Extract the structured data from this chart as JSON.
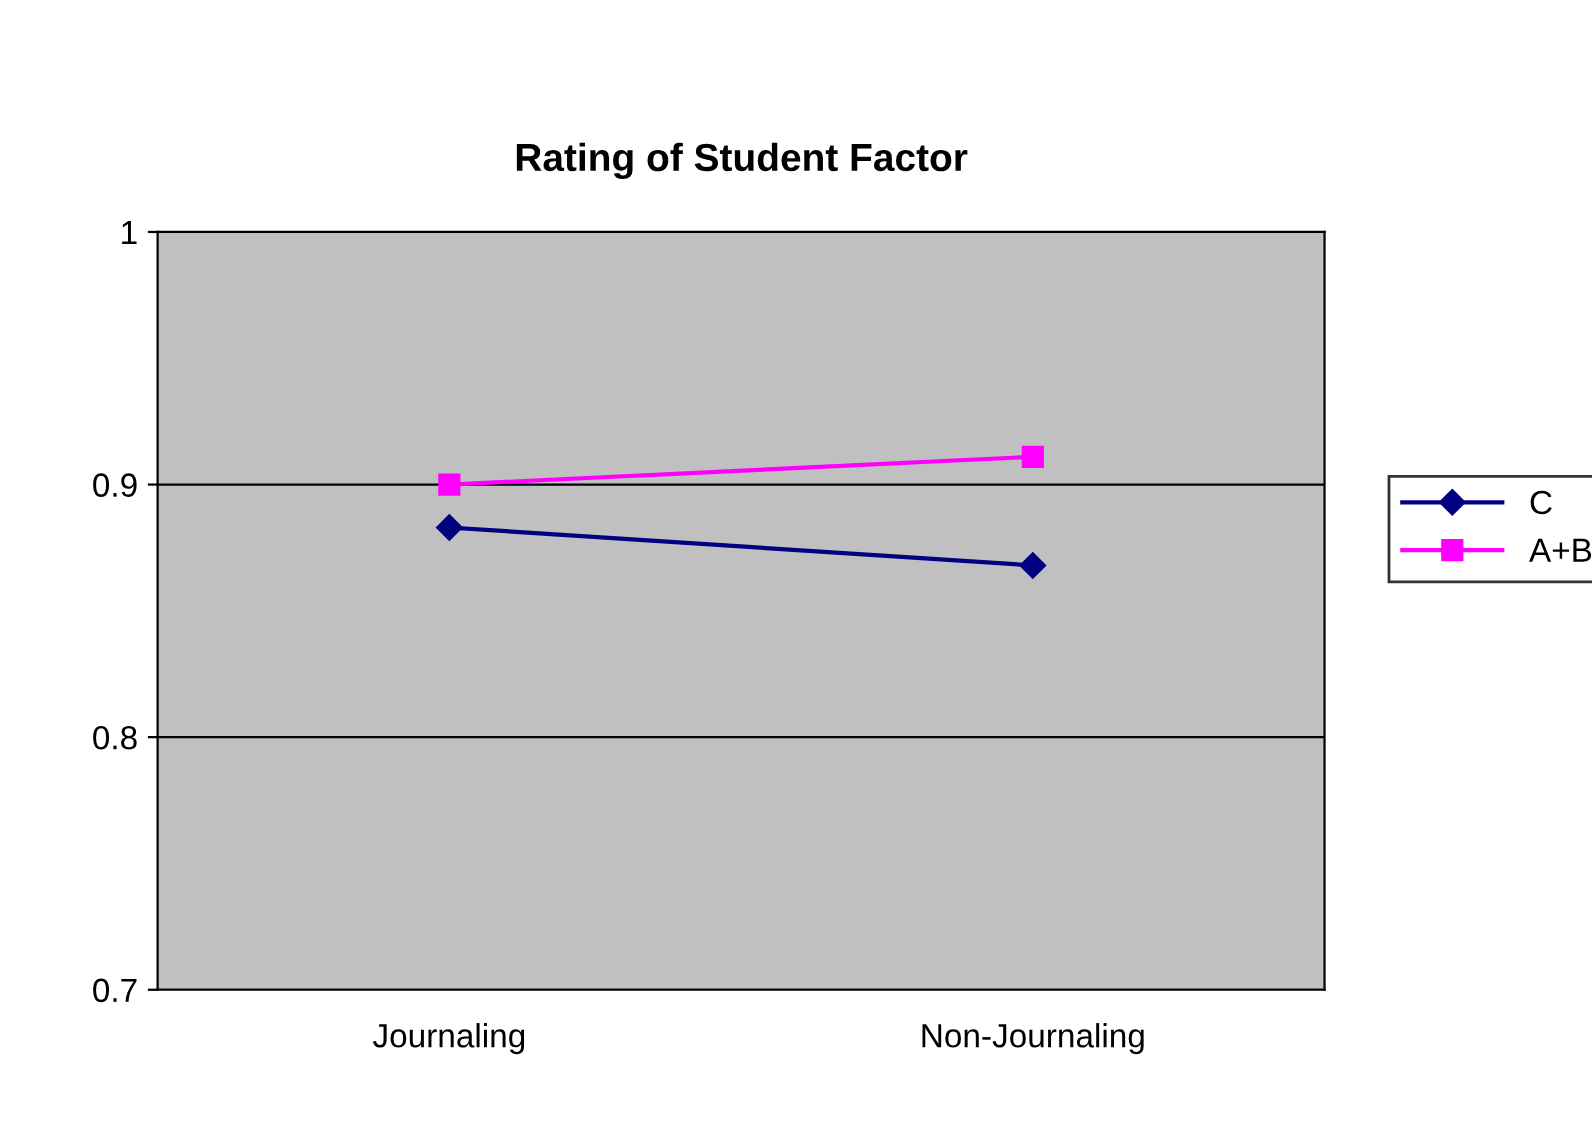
{
  "chart_data": {
    "type": "line",
    "title": "Rating of Student Factor",
    "categories": [
      "Journaling",
      "Non-Journaling"
    ],
    "series": [
      {
        "name": "C",
        "color": "#000080",
        "values": [
          0.883,
          0.868
        ],
        "marker": "diamond"
      },
      {
        "name": "A+B",
        "color": "#ff00ff",
        "values": [
          0.9,
          0.911
        ],
        "marker": "square"
      }
    ],
    "ylim": [
      0.7,
      1
    ],
    "yticks": [
      0.7,
      0.8,
      0.9,
      1
    ],
    "grid": "y",
    "legend": "right",
    "line_style": "solid"
  }
}
